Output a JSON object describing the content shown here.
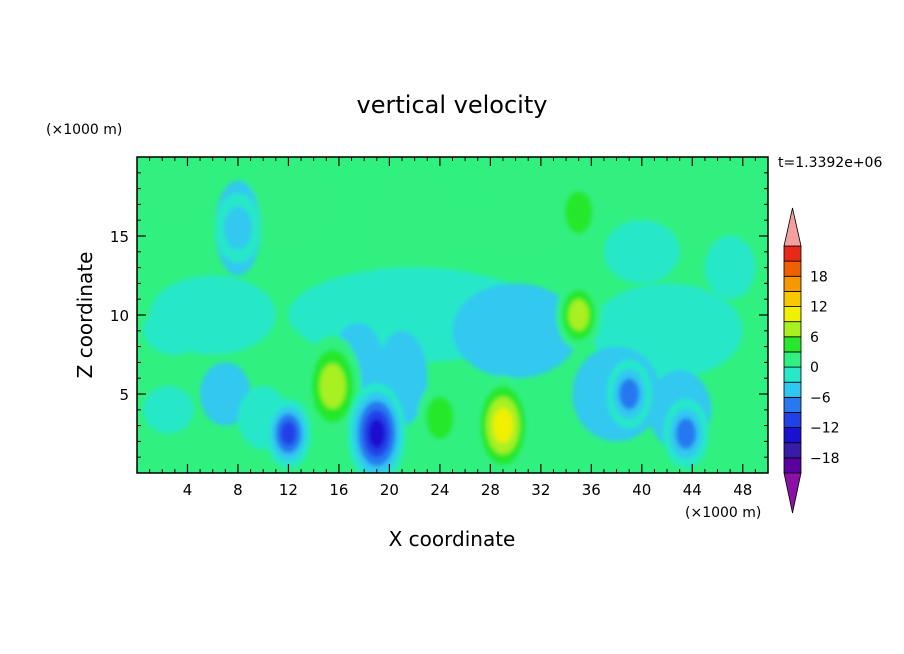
{
  "chart_data": {
    "type": "heatmap",
    "title": "vertical velocity",
    "xlabel": "X coordinate",
    "ylabel": "Z coordinate",
    "x_unit": "(×1000 m)",
    "y_unit": "(×1000 m)",
    "time_label": "t=1.3392e+06",
    "xlim": [
      0,
      50
    ],
    "ylim": [
      0,
      20
    ],
    "x_ticks": [
      4,
      8,
      12,
      16,
      20,
      24,
      28,
      32,
      36,
      40,
      44,
      48
    ],
    "y_ticks": [
      5,
      10,
      15
    ],
    "colorbar": {
      "levels": [
        -21,
        -18,
        -15,
        -12,
        -9,
        -6,
        -3,
        0,
        3,
        6,
        9,
        12,
        15,
        18,
        21
      ],
      "labels": [
        -18,
        -12,
        -6,
        0,
        6,
        12,
        18
      ],
      "colors": [
        "#5a00a0",
        "#3a1aa8",
        "#1a10d0",
        "#2040e8",
        "#2878f0",
        "#30c8f0",
        "#28e8c8",
        "#30f080",
        "#28e82c",
        "#a8f020",
        "#f0f000",
        "#f8c800",
        "#f89800",
        "#f06000",
        "#e82818"
      ],
      "under_color": "#8a10a8",
      "over_color": "#f4a0a0"
    },
    "features": [
      {
        "x": 12,
        "z": 2.5,
        "value": -11
      },
      {
        "x": 15.5,
        "z": 5.5,
        "value": 9
      },
      {
        "x": 19,
        "z": 2.5,
        "value": -14
      },
      {
        "x": 24,
        "z": 3.5,
        "value": 6
      },
      {
        "x": 29,
        "z": 3,
        "value": 12
      },
      {
        "x": 35,
        "z": 10,
        "value": 8
      },
      {
        "x": 39,
        "z": 5,
        "value": -10
      },
      {
        "x": 43.5,
        "z": 2.5,
        "value": -10
      },
      {
        "x": 35,
        "z": 16.5,
        "value": 5
      },
      {
        "x": 8,
        "z": 15.5,
        "value": -5
      }
    ]
  }
}
